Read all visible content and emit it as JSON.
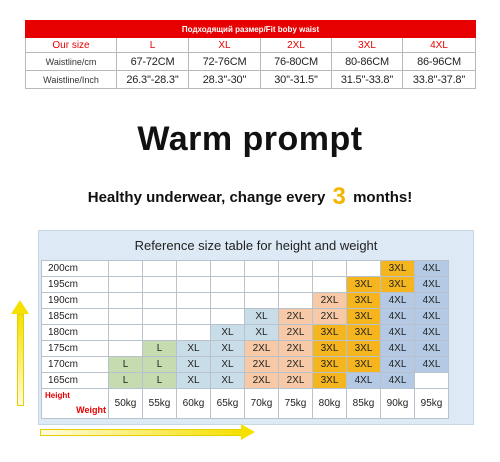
{
  "size_table": {
    "header": "Подходящий размер/Fit boby waist",
    "our_size_label": "Our size",
    "sizes": [
      "L",
      "XL",
      "2XL",
      "3XL",
      "4XL"
    ],
    "waist_cm_label": "Waistline/cm",
    "waist_cm": [
      "67-72CM",
      "72-76CM",
      "76-80CM",
      "80-86CM",
      "86-96CM"
    ],
    "waist_inch_label": "Waistline/Inch",
    "waist_inch": [
      "26.3''-28.3''",
      "28.3''-30''",
      "30''-31.5''",
      "31.5''-33.8''",
      "33.8''-37.8''"
    ]
  },
  "prompt": {
    "title": "Warm prompt",
    "line_before": "Healthy underwear, change every",
    "number": "3",
    "line_after": "months!"
  },
  "reference": {
    "title": "Reference size table for height and weight",
    "corner_height": "Height",
    "corner_weight": "Weight",
    "weights": [
      "50kg",
      "55kg",
      "60kg",
      "65kg",
      "70kg",
      "75kg",
      "80kg",
      "85kg",
      "90kg",
      "95kg"
    ],
    "rows": [
      {
        "height": "200cm",
        "cells": [
          "",
          "",
          "",
          "",
          "",
          "",
          "",
          "",
          "3XL",
          "4XL"
        ]
      },
      {
        "height": "195cm",
        "cells": [
          "",
          "",
          "",
          "",
          "",
          "",
          "",
          "3XL",
          "3XL",
          "4XL"
        ]
      },
      {
        "height": "190cm",
        "cells": [
          "",
          "",
          "",
          "",
          "",
          "",
          "2XL",
          "3XL",
          "4XL",
          "4XL"
        ]
      },
      {
        "height": "185cm",
        "cells": [
          "",
          "",
          "",
          "",
          "XL",
          "2XL",
          "2XL",
          "3XL",
          "4XL",
          "4XL"
        ]
      },
      {
        "height": "180cm",
        "cells": [
          "",
          "",
          "",
          "XL",
          "XL",
          "2XL",
          "3XL",
          "3XL",
          "4XL",
          "4XL"
        ]
      },
      {
        "height": "175cm",
        "cells": [
          "",
          "L",
          "XL",
          "XL",
          "2XL",
          "2XL",
          "3XL",
          "3XL",
          "4XL",
          "4XL"
        ]
      },
      {
        "height": "170cm",
        "cells": [
          "L",
          "L",
          "XL",
          "XL",
          "2XL",
          "2XL",
          "3XL",
          "3XL",
          "4XL",
          "4XL"
        ]
      },
      {
        "height": "165cm",
        "cells": [
          "L",
          "L",
          "XL",
          "XL",
          "2XL",
          "2XL",
          "3XL",
          "4XL",
          "4XL",
          ""
        ]
      }
    ]
  },
  "colors": {
    "accent_red": "#e60000",
    "highlight_yellow": "#f5b400",
    "size_L": "#c6dcb0",
    "size_XL": "#c9dde9",
    "size_2XL": "#f7c9a6",
    "size_3XL": "#f4b51f",
    "size_4XL": "#b3c9e4"
  },
  "icons": [
    "arrow-up-icon",
    "arrow-right-icon"
  ]
}
